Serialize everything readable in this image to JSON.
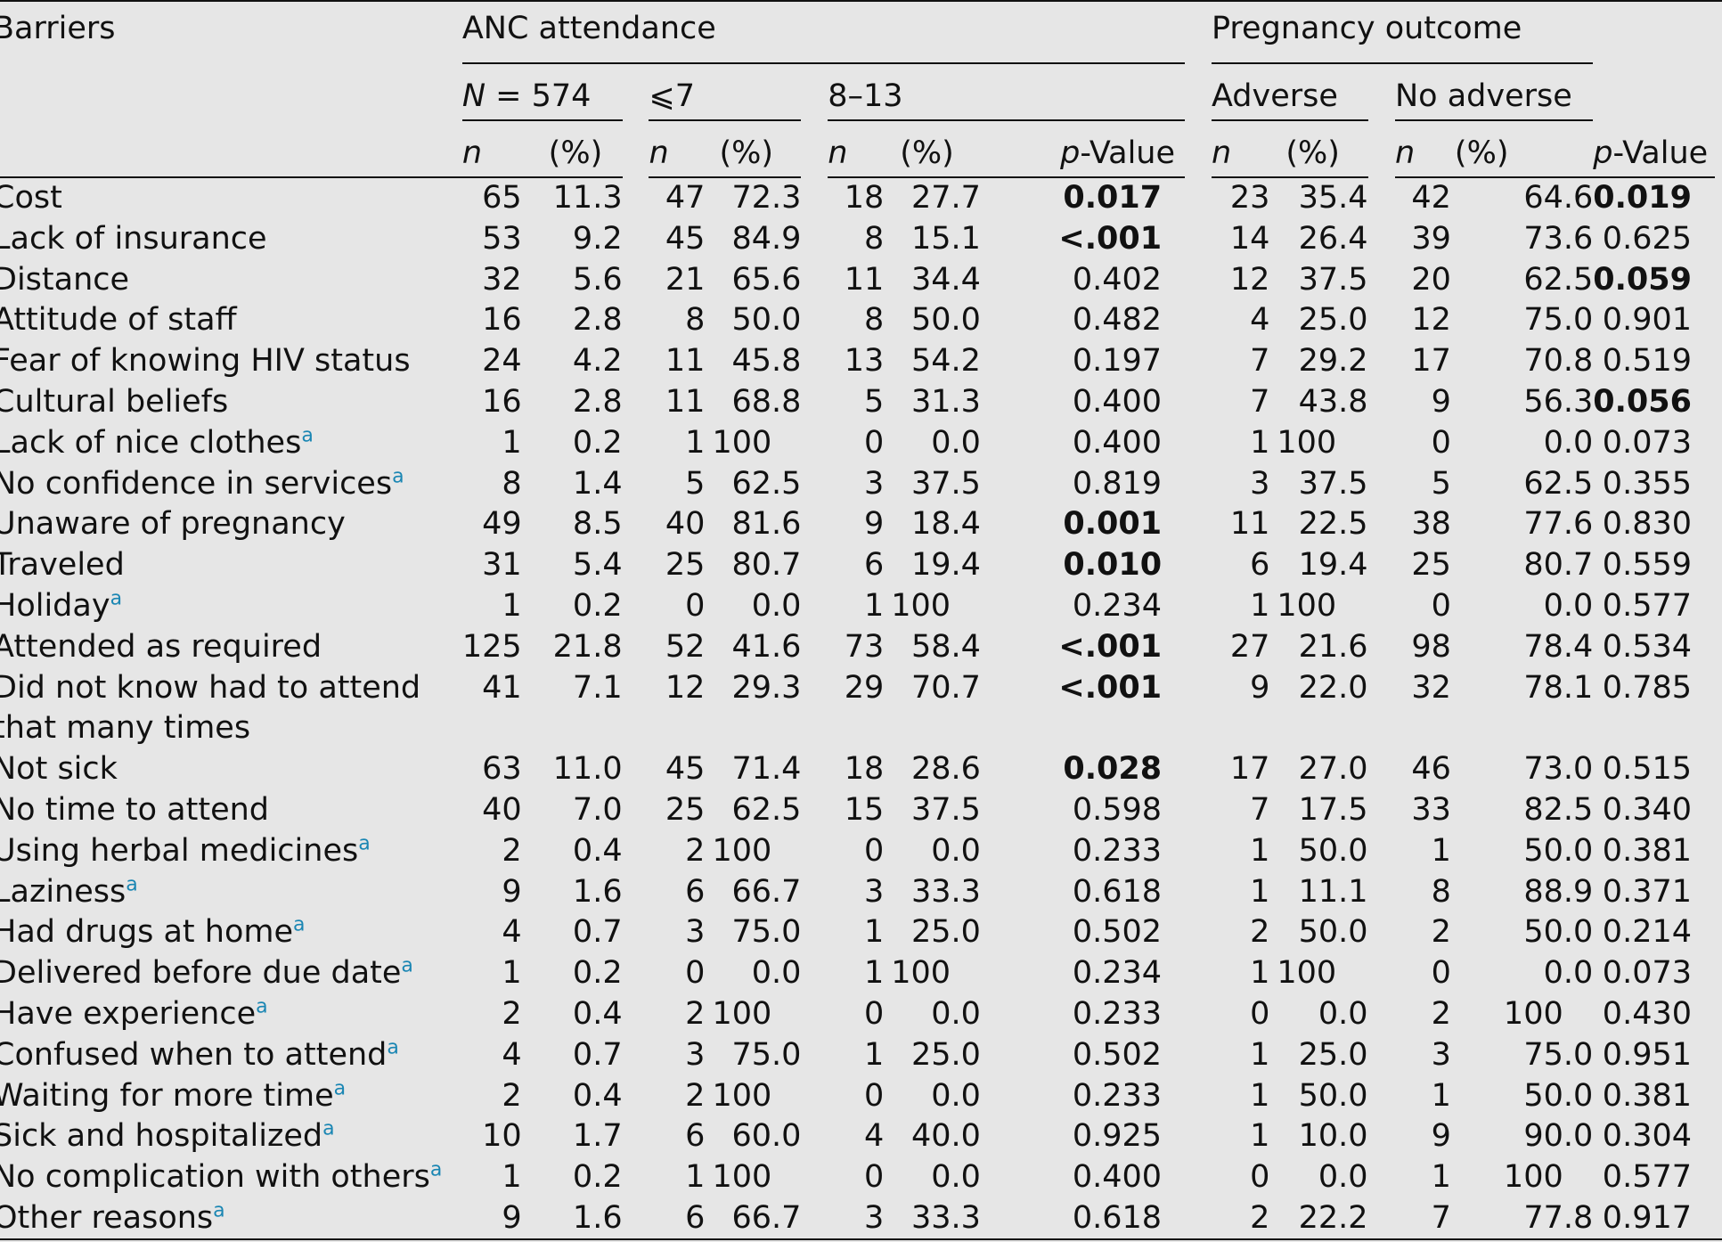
{
  "headers": {
    "barriers": "Barriers",
    "anc": "ANC attendance",
    "pregnancy": "Pregnancy outcome",
    "n574": "N = 574",
    "le7": "⩽7",
    "r813": "8–13",
    "adverse": "Adverse",
    "no_adverse": "No adverse",
    "n": "n",
    "pct": "(%)",
    "pvalue": "p-Value"
  },
  "rows": [
    {
      "label": "Cost",
      "sup": "",
      "c": [
        "65",
        "11.3",
        "47",
        "72.3",
        "18",
        "27.7",
        "0.017",
        "23",
        "35.4",
        "42",
        "64.6",
        "0.019"
      ],
      "bold": [
        6,
        11
      ]
    },
    {
      "label": "Lack of insurance",
      "sup": "",
      "c": [
        "53",
        "9.2",
        "45",
        "84.9",
        "8",
        "15.1",
        "<.001",
        "14",
        "26.4",
        "39",
        "73.6",
        "0.625"
      ],
      "bold": [
        6
      ]
    },
    {
      "label": "Distance",
      "sup": "",
      "c": [
        "32",
        "5.6",
        "21",
        "65.6",
        "11",
        "34.4",
        "0.402",
        "12",
        "37.5",
        "20",
        "62.5",
        "0.059"
      ],
      "bold": [
        11
      ]
    },
    {
      "label": "Attitude of staff",
      "sup": "",
      "c": [
        "16",
        "2.8",
        "8",
        "50.0",
        "8",
        "50.0",
        "0.482",
        "4",
        "25.0",
        "12",
        "75.0",
        "0.901"
      ],
      "bold": []
    },
    {
      "label": "Fear of knowing HIV status",
      "sup": "",
      "c": [
        "24",
        "4.2",
        "11",
        "45.8",
        "13",
        "54.2",
        "0.197",
        "7",
        "29.2",
        "17",
        "70.8",
        "0.519"
      ],
      "bold": []
    },
    {
      "label": "Cultural beliefs",
      "sup": "",
      "c": [
        "16",
        "2.8",
        "11",
        "68.8",
        "5",
        "31.3",
        "0.400",
        "7",
        "43.8",
        "9",
        "56.3",
        "0.056"
      ],
      "bold": [
        11
      ]
    },
    {
      "label": "Lack of nice clothes",
      "sup": "a",
      "c": [
        "1",
        "0.2",
        "1",
        "100",
        "0",
        "0.0",
        "0.400",
        "1",
        "100",
        "0",
        "0.0",
        "0.073"
      ],
      "bold": []
    },
    {
      "label": "No confidence in services",
      "sup": "a",
      "c": [
        "8",
        "1.4",
        "5",
        "62.5",
        "3",
        "37.5",
        "0.819",
        "3",
        "37.5",
        "5",
        "62.5",
        "0.355"
      ],
      "bold": []
    },
    {
      "label": "Unaware of pregnancy",
      "sup": "",
      "c": [
        "49",
        "8.5",
        "40",
        "81.6",
        "9",
        "18.4",
        "0.001",
        "11",
        "22.5",
        "38",
        "77.6",
        "0.830"
      ],
      "bold": [
        6
      ]
    },
    {
      "label": "Traveled",
      "sup": "",
      "c": [
        "31",
        "5.4",
        "25",
        "80.7",
        "6",
        "19.4",
        "0.010",
        "6",
        "19.4",
        "25",
        "80.7",
        "0.559"
      ],
      "bold": [
        6
      ]
    },
    {
      "label": "Holiday",
      "sup": "a",
      "c": [
        "1",
        "0.2",
        "0",
        "0.0",
        "1",
        "100",
        "0.234",
        "1",
        "100",
        "0",
        "0.0",
        "0.577"
      ],
      "bold": []
    },
    {
      "label": "Attended as required",
      "sup": "",
      "c": [
        "125",
        "21.8",
        "52",
        "41.6",
        "73",
        "58.4",
        "<.001",
        "27",
        "21.6",
        "98",
        "78.4",
        "0.534"
      ],
      "bold": [
        6
      ]
    },
    {
      "label": "Did not know had to attend",
      "label2": "that many times",
      "sup": "",
      "c": [
        "41",
        "7.1",
        "12",
        "29.3",
        "29",
        "70.7",
        "<.001",
        "9",
        "22.0",
        "32",
        "78.1",
        "0.785"
      ],
      "bold": [
        6
      ]
    },
    {
      "label": "Not sick",
      "sup": "",
      "c": [
        "63",
        "11.0",
        "45",
        "71.4",
        "18",
        "28.6",
        "0.028",
        "17",
        "27.0",
        "46",
        "73.0",
        "0.515"
      ],
      "bold": [
        6
      ]
    },
    {
      "label": "No time to attend",
      "sup": "",
      "c": [
        "40",
        "7.0",
        "25",
        "62.5",
        "15",
        "37.5",
        "0.598",
        "7",
        "17.5",
        "33",
        "82.5",
        "0.340"
      ],
      "bold": []
    },
    {
      "label": "Using herbal medicines",
      "sup": "a",
      "c": [
        "2",
        "0.4",
        "2",
        "100",
        "0",
        "0.0",
        "0.233",
        "1",
        "50.0",
        "1",
        "50.0",
        "0.381"
      ],
      "bold": []
    },
    {
      "label": "Laziness",
      "sup": "a",
      "c": [
        "9",
        "1.6",
        "6",
        "66.7",
        "3",
        "33.3",
        "0.618",
        "1",
        "11.1",
        "8",
        "88.9",
        "0.371"
      ],
      "bold": []
    },
    {
      "label": "Had drugs at home",
      "sup": "a",
      "c": [
        "4",
        "0.7",
        "3",
        "75.0",
        "1",
        "25.0",
        "0.502",
        "2",
        "50.0",
        "2",
        "50.0",
        "0.214"
      ],
      "bold": []
    },
    {
      "label": "Delivered before due date",
      "sup": "a",
      "c": [
        "1",
        "0.2",
        "0",
        "0.0",
        "1",
        "100",
        "0.234",
        "1",
        "100",
        "0",
        "0.0",
        "0.073"
      ],
      "bold": []
    },
    {
      "label": "Have experience",
      "sup": "a",
      "c": [
        "2",
        "0.4",
        "2",
        "100",
        "0",
        "0.0",
        "0.233",
        "0",
        "0.0",
        "2",
        "100",
        "0.430"
      ],
      "bold": []
    },
    {
      "label": "Confused when to attend",
      "sup": "a",
      "c": [
        "4",
        "0.7",
        "3",
        "75.0",
        "1",
        "25.0",
        "0.502",
        "1",
        "25.0",
        "3",
        "75.0",
        "0.951"
      ],
      "bold": []
    },
    {
      "label": "Waiting for more time",
      "sup": "a",
      "c": [
        "2",
        "0.4",
        "2",
        "100",
        "0",
        "0.0",
        "0.233",
        "1",
        "50.0",
        "1",
        "50.0",
        "0.381"
      ],
      "bold": []
    },
    {
      "label": "Sick and hospitalized",
      "sup": "a",
      "c": [
        "10",
        "1.7",
        "6",
        "60.0",
        "4",
        "40.0",
        "0.925",
        "1",
        "10.0",
        "9",
        "90.0",
        "0.304"
      ],
      "bold": []
    },
    {
      "label": "No complication with others",
      "sup": "a",
      "c": [
        "1",
        "0.2",
        "1",
        "100",
        "0",
        "0.0",
        "0.400",
        "0",
        "0.0",
        "1",
        "100",
        "0.577"
      ],
      "bold": []
    },
    {
      "label": "Other reasons",
      "sup": "a",
      "c": [
        "9",
        "1.6",
        "6",
        "66.7",
        "3",
        "33.3",
        "0.618",
        "2",
        "22.2",
        "7",
        "77.8",
        "0.917"
      ],
      "bold": []
    }
  ]
}
